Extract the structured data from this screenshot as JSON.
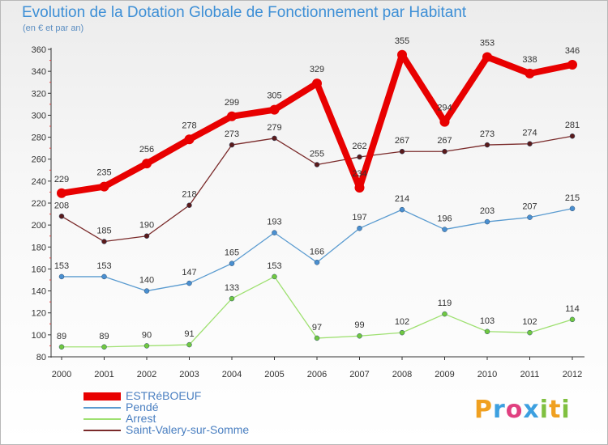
{
  "colors": {
    "series": [
      "#e80000",
      "#5a9bd0",
      "#9ee070",
      "#7a2a2a"
    ],
    "markers": [
      "#e80000",
      "#4a8fd0",
      "#70c840",
      "#5a1a1a"
    ],
    "axis": "#333333",
    "grid": "#dddddd",
    "title": "#3d8fd6"
  },
  "logo": {
    "letters": [
      "P",
      "r",
      "o",
      "x",
      "i",
      "t",
      "i"
    ],
    "colors": [
      "#f0a020",
      "#3da0e0",
      "#e04080",
      "#3da0e0",
      "#80c040",
      "#f0a020",
      "#80c040"
    ]
  },
  "chart_data": {
    "type": "line",
    "title": "Evolution de la Dotation Globale de Fonctionnement par Habitant",
    "subtitle": "(en € et par an)",
    "xlabel": "",
    "ylabel": "",
    "x": [
      "2000",
      "2001",
      "2002",
      "2003",
      "2004",
      "2005",
      "2006",
      "2007",
      "2008",
      "2009",
      "2010",
      "2011",
      "2012"
    ],
    "ylim": [
      80,
      360
    ],
    "yticks": [
      "80",
      "100",
      "120",
      "140",
      "160",
      "180",
      "200",
      "220",
      "240",
      "260",
      "280",
      "300",
      "320",
      "340",
      "360"
    ],
    "grid": false,
    "legend_position": "bottom-left",
    "series": [
      {
        "name": "ESTRéBOEUF",
        "values": [
          229,
          235,
          256,
          278,
          299,
          305,
          329,
          234,
          355,
          294,
          353,
          338,
          346
        ],
        "labels": [
          "229",
          "235",
          "256",
          "278",
          "299",
          "305",
          "329",
          "234",
          "355",
          "294",
          "353",
          "338",
          "346"
        ]
      },
      {
        "name": "Pendé",
        "values": [
          153,
          153,
          140,
          147,
          165,
          193,
          166,
          197,
          214,
          196,
          203,
          207,
          215
        ],
        "labels": [
          "153",
          "153",
          "140",
          "147",
          "165",
          "193",
          "166",
          "197",
          "214",
          "196",
          "203",
          "207",
          "215"
        ]
      },
      {
        "name": "Arrest",
        "values": [
          89,
          89,
          90,
          91,
          133,
          153,
          97,
          99,
          102,
          119,
          103,
          102,
          114
        ],
        "labels": [
          "89",
          "89",
          "90",
          "91",
          "133",
          "153",
          "97",
          "99",
          "102",
          "119",
          "103",
          "102",
          "114"
        ]
      },
      {
        "name": "Saint-Valery-sur-Somme",
        "values": [
          208,
          185,
          190,
          218,
          273,
          279,
          255,
          262,
          267,
          267,
          273,
          274,
          281
        ],
        "labels": [
          "208",
          "185",
          "190",
          "218",
          "273",
          "279",
          "255",
          "262",
          "267",
          "267",
          "273",
          "274",
          "281"
        ]
      }
    ]
  }
}
